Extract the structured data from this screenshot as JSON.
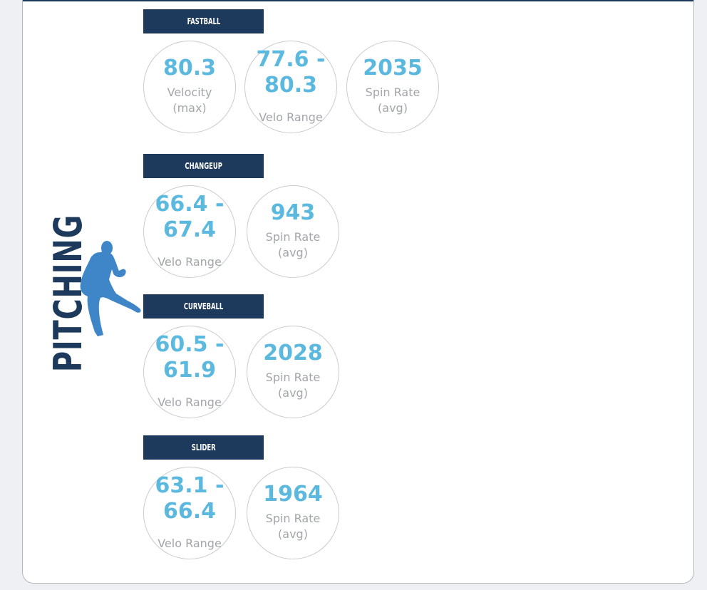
{
  "page": {
    "title": "PITCHING"
  },
  "icons": {
    "pitcher": "pitcher-silhouette-icon"
  },
  "colors": {
    "navy": "#1d3a5c",
    "accent_blue": "#5bb8de",
    "label_gray": "#a2a5a9",
    "circle_border": "#c9cbce",
    "silhouette": "#3e86c7"
  },
  "sections": [
    {
      "title": "FASTBALL",
      "stats": [
        {
          "value": "80.3",
          "label": "Velocity\n(max)"
        },
        {
          "value": "77.6 -\n80.3",
          "label": "Velo Range"
        },
        {
          "value": "2035",
          "label": "Spin Rate\n(avg)"
        }
      ]
    },
    {
      "title": "CHANGEUP",
      "stats": [
        {
          "value": "66.4 -\n67.4",
          "label": "Velo Range"
        },
        {
          "value": "943",
          "label": "Spin Rate\n(avg)"
        }
      ]
    },
    {
      "title": "CURVEBALL",
      "stats": [
        {
          "value": "60.5 -\n61.9",
          "label": "Velo Range"
        },
        {
          "value": "2028",
          "label": "Spin Rate\n(avg)"
        }
      ]
    },
    {
      "title": "SLIDER",
      "stats": [
        {
          "value": "63.1 -\n66.4",
          "label": "Velo Range"
        },
        {
          "value": "1964",
          "label": "Spin Rate\n(avg)"
        }
      ]
    }
  ]
}
